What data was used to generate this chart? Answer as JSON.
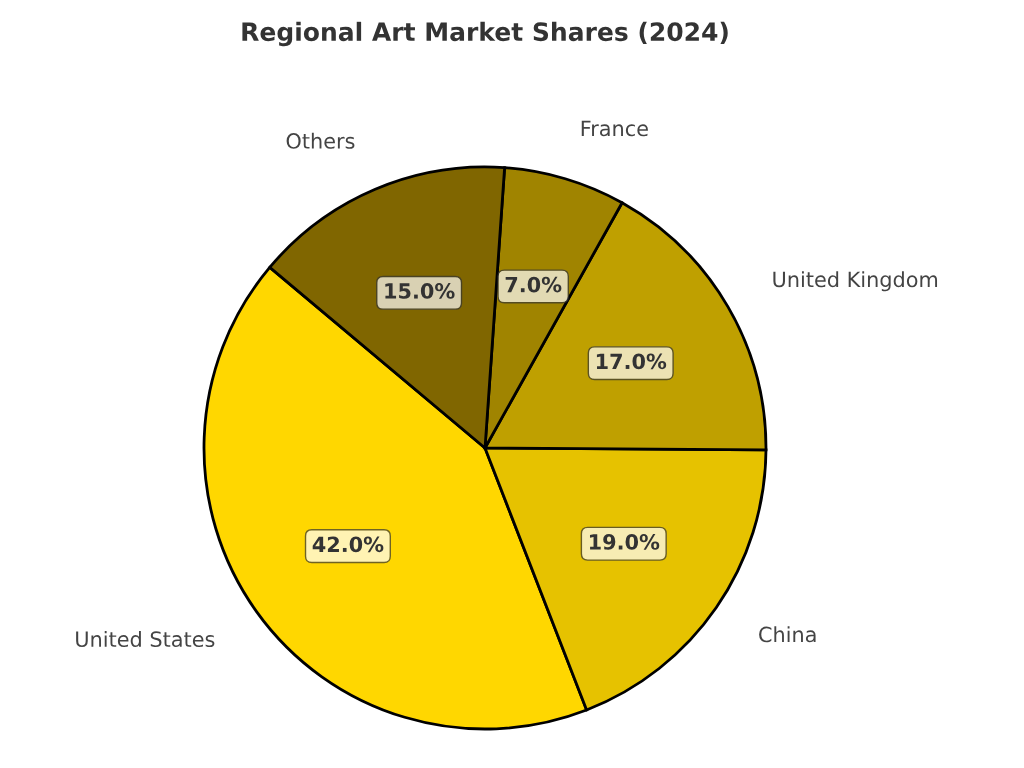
{
  "chart_data": {
    "type": "pie",
    "title": "Regional Art Market Shares (2024)",
    "categories": [
      "United States",
      "China",
      "United Kingdom",
      "France",
      "Others"
    ],
    "values": [
      42,
      19,
      17,
      7,
      15
    ],
    "colors": [
      "#ffd700",
      "#e6c200",
      "#bfa000",
      "#a08400",
      "#806600"
    ],
    "value_labels": [
      "42.0%",
      "19.0%",
      "17.0%",
      "7.0%",
      "15.0%"
    ],
    "legend": false
  }
}
